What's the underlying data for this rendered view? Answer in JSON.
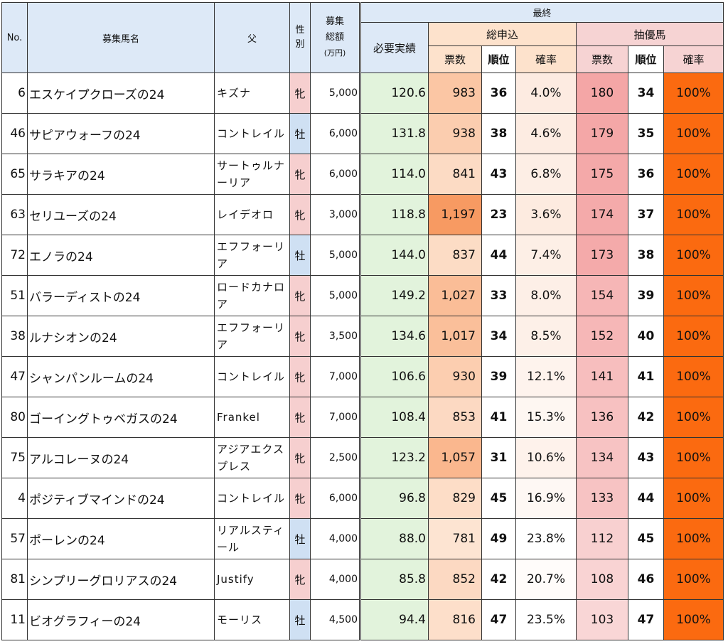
{
  "headers": {
    "no": "No.",
    "name": "募集馬名",
    "sire": "父",
    "sex": "性別",
    "fund_line1": "募集",
    "fund_line2": "総額",
    "fund_unit": "(万円)",
    "final": "最終",
    "required": "必要実績",
    "total_apply": "総申込",
    "lottery": "抽優馬",
    "votes": "票数",
    "rank": "順位",
    "prob": "確率"
  },
  "colors": {
    "app_high": "#f79a62",
    "app_mid": "#fbc5a3",
    "app_low": "#fde4d2",
    "prob_low": "#fdebe0",
    "prob_high": "#ffffff",
    "pri_high": "#f4a6a6",
    "pri_low": "#f9d6d6",
    "pri_prob": "#fb6a10",
    "need": "#e2f3dc"
  },
  "rows": [
    {
      "no": "6",
      "name": "エスケイプクローズの24",
      "sire": "キズナ",
      "sex": "牝",
      "sex_type": "f",
      "fund": "5,000",
      "need": "120.6",
      "votes": "983",
      "rank": "36",
      "prob": "4.0%",
      "pvotes": "180",
      "prank": "34",
      "pprob": "100%"
    },
    {
      "no": "46",
      "name": "サピアウォーフの24",
      "sire": "コントレイル",
      "sex": "牡",
      "sex_type": "m",
      "fund": "6,000",
      "need": "131.8",
      "votes": "938",
      "rank": "38",
      "prob": "4.6%",
      "pvotes": "179",
      "prank": "35",
      "pprob": "100%"
    },
    {
      "no": "65",
      "name": "サラキアの24",
      "sire": "サートゥルナーリア",
      "sex": "牝",
      "sex_type": "f",
      "fund": "6,000",
      "need": "114.0",
      "votes": "841",
      "rank": "43",
      "prob": "6.8%",
      "pvotes": "175",
      "prank": "36",
      "pprob": "100%"
    },
    {
      "no": "63",
      "name": "セリユーズの24",
      "sire": "レイデオロ",
      "sex": "牝",
      "sex_type": "f",
      "fund": "3,000",
      "need": "118.8",
      "votes": "1,197",
      "rank": "23",
      "prob": "3.6%",
      "pvotes": "174",
      "prank": "37",
      "pprob": "100%"
    },
    {
      "no": "72",
      "name": "エノラの24",
      "sire": "エフフォーリア",
      "sex": "牡",
      "sex_type": "m",
      "fund": "5,000",
      "need": "144.0",
      "votes": "837",
      "rank": "44",
      "prob": "7.4%",
      "pvotes": "173",
      "prank": "38",
      "pprob": "100%"
    },
    {
      "no": "51",
      "name": "バラーディストの24",
      "sire": "ロードカナロア",
      "sex": "牝",
      "sex_type": "f",
      "fund": "5,000",
      "need": "149.2",
      "votes": "1,027",
      "rank": "33",
      "prob": "8.0%",
      "pvotes": "154",
      "prank": "39",
      "pprob": "100%"
    },
    {
      "no": "38",
      "name": "ルナシオンの24",
      "sire": "エフフォーリア",
      "sex": "牝",
      "sex_type": "f",
      "fund": "3,500",
      "need": "134.6",
      "votes": "1,017",
      "rank": "34",
      "prob": "8.5%",
      "pvotes": "152",
      "prank": "40",
      "pprob": "100%"
    },
    {
      "no": "47",
      "name": "シャンパンルームの24",
      "sire": "コントレイル",
      "sex": "牝",
      "sex_type": "f",
      "fund": "7,000",
      "need": "106.6",
      "votes": "930",
      "rank": "39",
      "prob": "12.1%",
      "pvotes": "141",
      "prank": "41",
      "pprob": "100%"
    },
    {
      "no": "80",
      "name": "ゴーイングトゥベガスの24",
      "sire": "Frankel",
      "sex": "牝",
      "sex_type": "f",
      "fund": "7,000",
      "need": "108.4",
      "votes": "853",
      "rank": "41",
      "prob": "15.3%",
      "pvotes": "136",
      "prank": "42",
      "pprob": "100%"
    },
    {
      "no": "75",
      "name": "アルコレーヌの24",
      "sire": "アジアエクスプレス",
      "sex": "牝",
      "sex_type": "f",
      "fund": "2,500",
      "need": "123.2",
      "votes": "1,057",
      "rank": "31",
      "prob": "10.6%",
      "pvotes": "134",
      "prank": "43",
      "pprob": "100%"
    },
    {
      "no": "4",
      "name": "ポジティブマインドの24",
      "sire": "コントレイル",
      "sex": "牝",
      "sex_type": "f",
      "fund": "6,000",
      "need": "96.8",
      "votes": "829",
      "rank": "45",
      "prob": "16.9%",
      "pvotes": "133",
      "prank": "44",
      "pprob": "100%"
    },
    {
      "no": "57",
      "name": "ポーレンの24",
      "sire": "リアルスティール",
      "sex": "牡",
      "sex_type": "m",
      "fund": "4,000",
      "need": "88.0",
      "votes": "781",
      "rank": "49",
      "prob": "23.8%",
      "pvotes": "112",
      "prank": "45",
      "pprob": "100%"
    },
    {
      "no": "81",
      "name": "シンプリーグロリアスの24",
      "sire": "Justify",
      "sex": "牝",
      "sex_type": "f",
      "fund": "4,000",
      "need": "85.8",
      "votes": "852",
      "rank": "42",
      "prob": "20.7%",
      "pvotes": "108",
      "prank": "46",
      "pprob": "100%"
    },
    {
      "no": "11",
      "name": "ビオグラフィーの24",
      "sire": "モーリス",
      "sex": "牡",
      "sex_type": "m",
      "fund": "4,500",
      "need": "94.4",
      "votes": "816",
      "rank": "47",
      "prob": "23.5%",
      "pvotes": "103",
      "prank": "47",
      "pprob": "100%"
    }
  ]
}
